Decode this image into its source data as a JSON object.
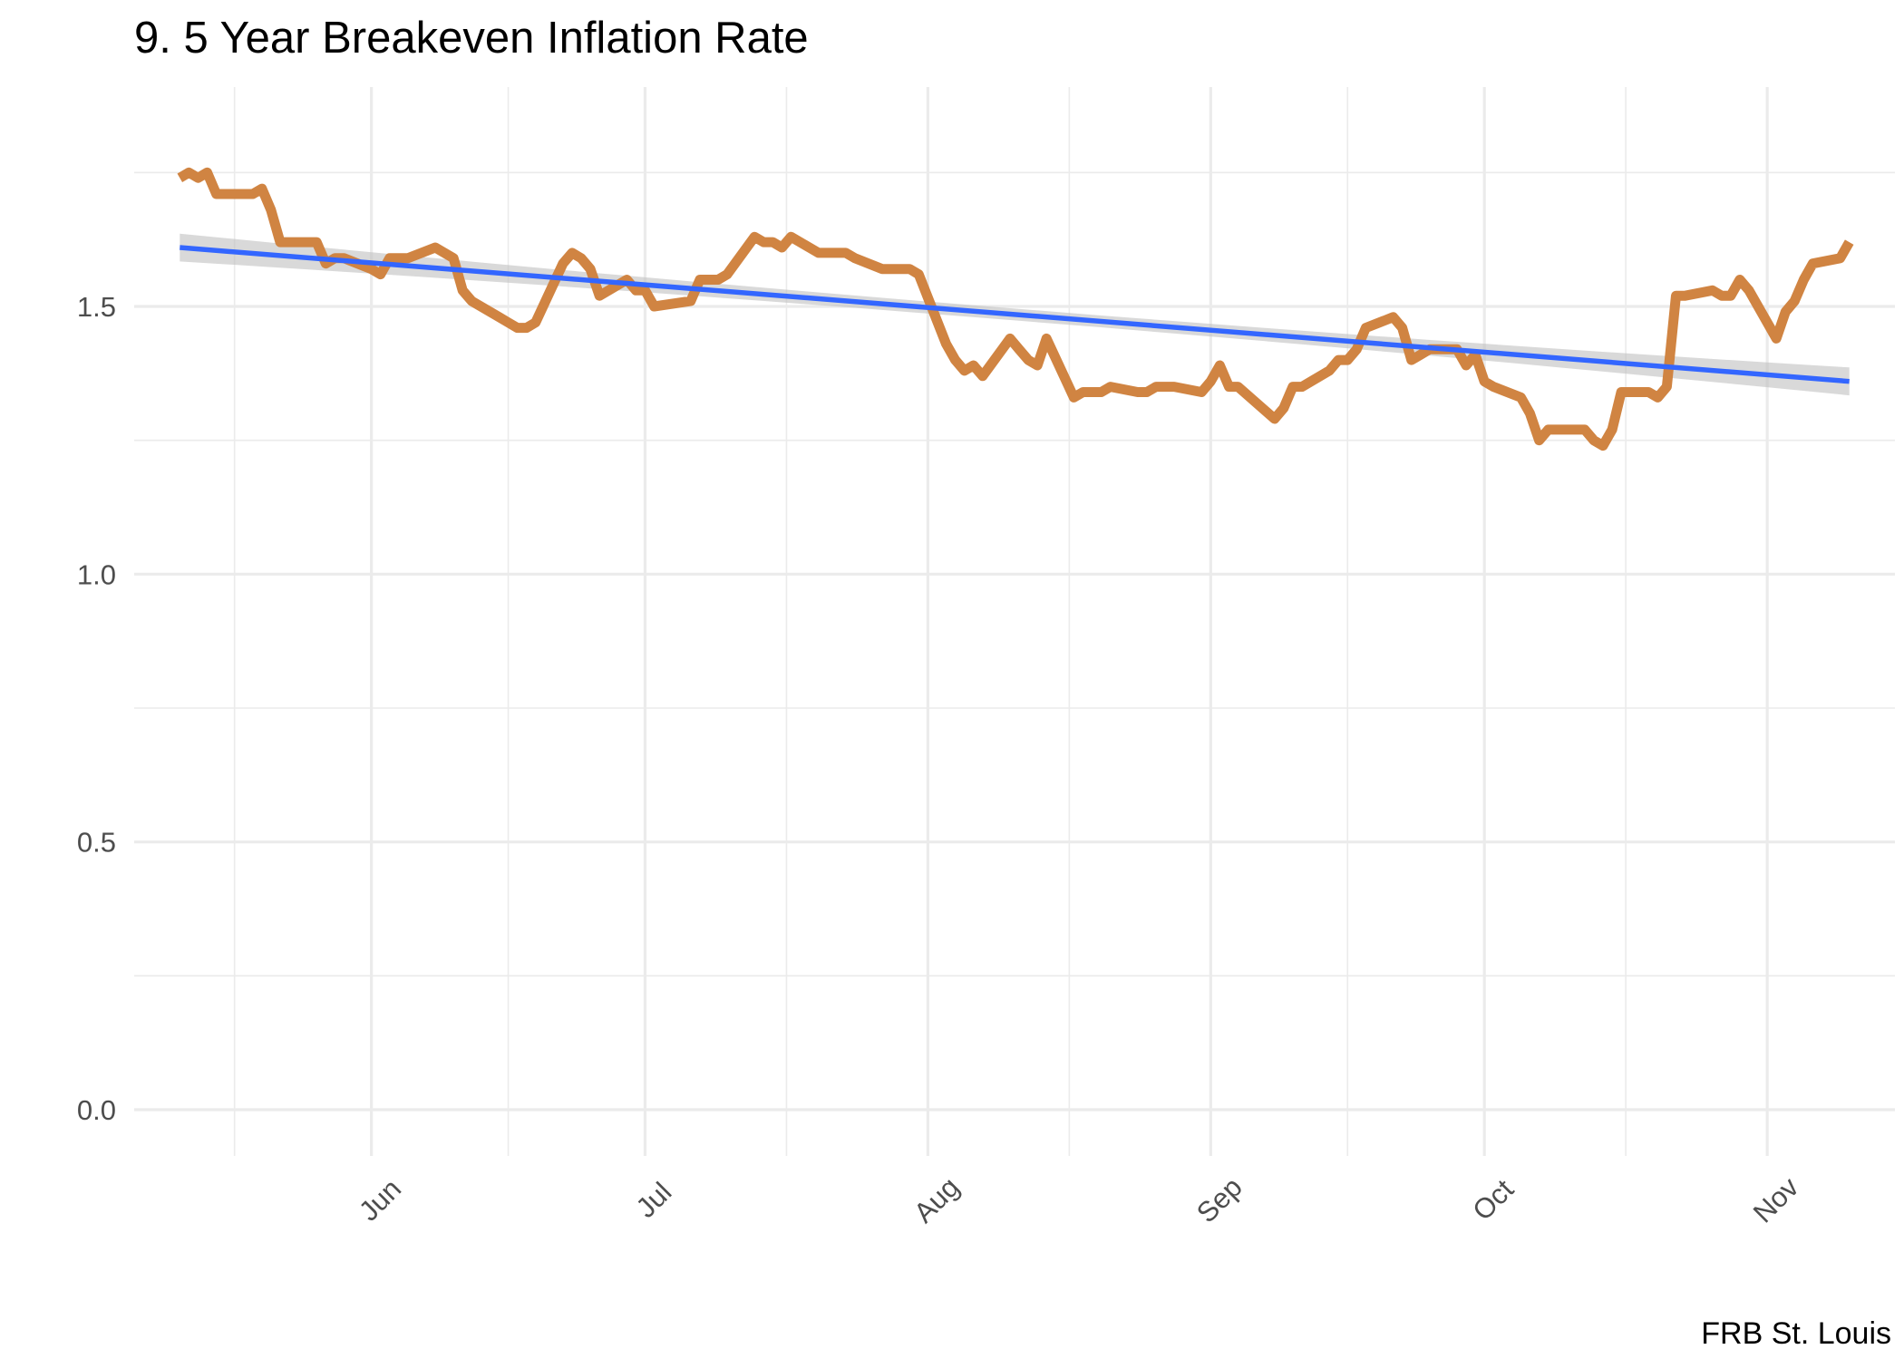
{
  "chart_data": {
    "type": "line",
    "title": "9. 5 Year Breakeven Inflation Rate",
    "caption": "FRB St. Louis",
    "xlabel": "",
    "ylabel": "",
    "ylim": [
      0,
      1.8
    ],
    "y_ticks": [
      0.0,
      0.5,
      1.0,
      1.5
    ],
    "y_tick_labels": [
      "0.0",
      "0.5",
      "1.0",
      "1.5"
    ],
    "x_ticks": [
      "2020-06-01",
      "2020-07-01",
      "2020-08-01",
      "2020-09-01",
      "2020-10-01",
      "2020-11-01"
    ],
    "x_tick_labels": [
      "Jun",
      "Jul",
      "Aug",
      "Sep",
      "Oct",
      "Nov"
    ],
    "xlim": [
      "2020-05-06",
      "2020-11-15"
    ],
    "grid": true,
    "colors": {
      "series": "#d08442",
      "trend": "#3366ff",
      "band": "#c0c0c0",
      "grid": "#ebebeb"
    },
    "series": [
      {
        "values": [
          [
            "2020-05-11",
            1.74
          ],
          [
            "2020-05-12",
            1.75
          ],
          [
            "2020-05-13",
            1.74
          ],
          [
            "2020-05-14",
            1.75
          ],
          [
            "2020-05-15",
            1.71
          ],
          [
            "2020-05-18",
            1.71
          ],
          [
            "2020-05-19",
            1.71
          ],
          [
            "2020-05-20",
            1.72
          ],
          [
            "2020-05-21",
            1.68
          ],
          [
            "2020-05-22",
            1.62
          ],
          [
            "2020-05-26",
            1.62
          ],
          [
            "2020-05-27",
            1.58
          ],
          [
            "2020-05-28",
            1.59
          ],
          [
            "2020-05-29",
            1.59
          ],
          [
            "2020-06-01",
            1.57
          ],
          [
            "2020-06-02",
            1.56
          ],
          [
            "2020-06-03",
            1.59
          ],
          [
            "2020-06-04",
            1.59
          ],
          [
            "2020-06-05",
            1.59
          ],
          [
            "2020-06-08",
            1.61
          ],
          [
            "2020-06-09",
            1.6
          ],
          [
            "2020-06-10",
            1.59
          ],
          [
            "2020-06-11",
            1.53
          ],
          [
            "2020-06-12",
            1.51
          ],
          [
            "2020-06-15",
            1.48
          ],
          [
            "2020-06-16",
            1.47
          ],
          [
            "2020-06-17",
            1.46
          ],
          [
            "2020-06-18",
            1.46
          ],
          [
            "2020-06-19",
            1.47
          ],
          [
            "2020-06-22",
            1.58
          ],
          [
            "2020-06-23",
            1.6
          ],
          [
            "2020-06-24",
            1.59
          ],
          [
            "2020-06-25",
            1.57
          ],
          [
            "2020-06-26",
            1.52
          ],
          [
            "2020-06-29",
            1.55
          ],
          [
            "2020-06-30",
            1.53
          ],
          [
            "2020-07-01",
            1.53
          ],
          [
            "2020-07-02",
            1.5
          ],
          [
            "2020-07-06",
            1.51
          ],
          [
            "2020-07-07",
            1.55
          ],
          [
            "2020-07-08",
            1.55
          ],
          [
            "2020-07-09",
            1.55
          ],
          [
            "2020-07-10",
            1.56
          ],
          [
            "2020-07-13",
            1.63
          ],
          [
            "2020-07-14",
            1.62
          ],
          [
            "2020-07-15",
            1.62
          ],
          [
            "2020-07-16",
            1.61
          ],
          [
            "2020-07-17",
            1.63
          ],
          [
            "2020-07-20",
            1.6
          ],
          [
            "2020-07-21",
            1.6
          ],
          [
            "2020-07-22",
            1.6
          ],
          [
            "2020-07-23",
            1.6
          ],
          [
            "2020-07-24",
            1.59
          ],
          [
            "2020-07-27",
            1.57
          ],
          [
            "2020-07-28",
            1.57
          ],
          [
            "2020-07-29",
            1.57
          ],
          [
            "2020-07-30",
            1.57
          ],
          [
            "2020-07-31",
            1.56
          ],
          [
            "2020-08-03",
            1.43
          ],
          [
            "2020-08-04",
            1.4
          ],
          [
            "2020-08-05",
            1.38
          ],
          [
            "2020-08-06",
            1.39
          ],
          [
            "2020-08-07",
            1.37
          ],
          [
            "2020-08-10",
            1.44
          ],
          [
            "2020-08-11",
            1.42
          ],
          [
            "2020-08-12",
            1.4
          ],
          [
            "2020-08-13",
            1.39
          ],
          [
            "2020-08-14",
            1.44
          ],
          [
            "2020-08-17",
            1.33
          ],
          [
            "2020-08-18",
            1.34
          ],
          [
            "2020-08-19",
            1.34
          ],
          [
            "2020-08-20",
            1.34
          ],
          [
            "2020-08-21",
            1.35
          ],
          [
            "2020-08-24",
            1.34
          ],
          [
            "2020-08-25",
            1.34
          ],
          [
            "2020-08-26",
            1.35
          ],
          [
            "2020-08-27",
            1.35
          ],
          [
            "2020-08-28",
            1.35
          ],
          [
            "2020-08-31",
            1.34
          ],
          [
            "2020-09-01",
            1.36
          ],
          [
            "2020-09-02",
            1.39
          ],
          [
            "2020-09-03",
            1.35
          ],
          [
            "2020-09-04",
            1.35
          ],
          [
            "2020-09-08",
            1.29
          ],
          [
            "2020-09-09",
            1.31
          ],
          [
            "2020-09-10",
            1.35
          ],
          [
            "2020-09-11",
            1.35
          ],
          [
            "2020-09-14",
            1.38
          ],
          [
            "2020-09-15",
            1.4
          ],
          [
            "2020-09-16",
            1.4
          ],
          [
            "2020-09-17",
            1.42
          ],
          [
            "2020-09-18",
            1.46
          ],
          [
            "2020-09-21",
            1.48
          ],
          [
            "2020-09-22",
            1.46
          ],
          [
            "2020-09-23",
            1.4
          ],
          [
            "2020-09-24",
            1.41
          ],
          [
            "2020-09-25",
            1.42
          ],
          [
            "2020-09-28",
            1.42
          ],
          [
            "2020-09-29",
            1.39
          ],
          [
            "2020-09-30",
            1.41
          ],
          [
            "2020-10-01",
            1.36
          ],
          [
            "2020-10-02",
            1.35
          ],
          [
            "2020-10-05",
            1.33
          ],
          [
            "2020-10-06",
            1.3
          ],
          [
            "2020-10-07",
            1.25
          ],
          [
            "2020-10-08",
            1.27
          ],
          [
            "2020-10-09",
            1.27
          ],
          [
            "2020-10-12",
            1.27
          ],
          [
            "2020-10-13",
            1.25
          ],
          [
            "2020-10-14",
            1.24
          ],
          [
            "2020-10-15",
            1.27
          ],
          [
            "2020-10-16",
            1.34
          ],
          [
            "2020-10-19",
            1.34
          ],
          [
            "2020-10-20",
            1.33
          ],
          [
            "2020-10-21",
            1.35
          ],
          [
            "2020-10-22",
            1.52
          ],
          [
            "2020-10-23",
            1.52
          ],
          [
            "2020-10-26",
            1.53
          ],
          [
            "2020-10-27",
            1.52
          ],
          [
            "2020-10-28",
            1.52
          ],
          [
            "2020-10-29",
            1.55
          ],
          [
            "2020-10-30",
            1.53
          ],
          [
            "2020-11-02",
            1.44
          ],
          [
            "2020-11-03",
            1.49
          ],
          [
            "2020-11-04",
            1.51
          ],
          [
            "2020-11-05",
            1.55
          ],
          [
            "2020-11-06",
            1.58
          ],
          [
            "2020-11-09",
            1.59
          ],
          [
            "2020-11-10",
            1.62
          ]
        ]
      }
    ],
    "trend": {
      "type": "linear",
      "start": [
        "2020-05-11",
        1.61
      ],
      "end": [
        "2020-11-10",
        1.36
      ],
      "band_halfwidth_start": 0.026,
      "band_halfwidth_mid": 0.011,
      "band_halfwidth_end": 0.026
    }
  }
}
